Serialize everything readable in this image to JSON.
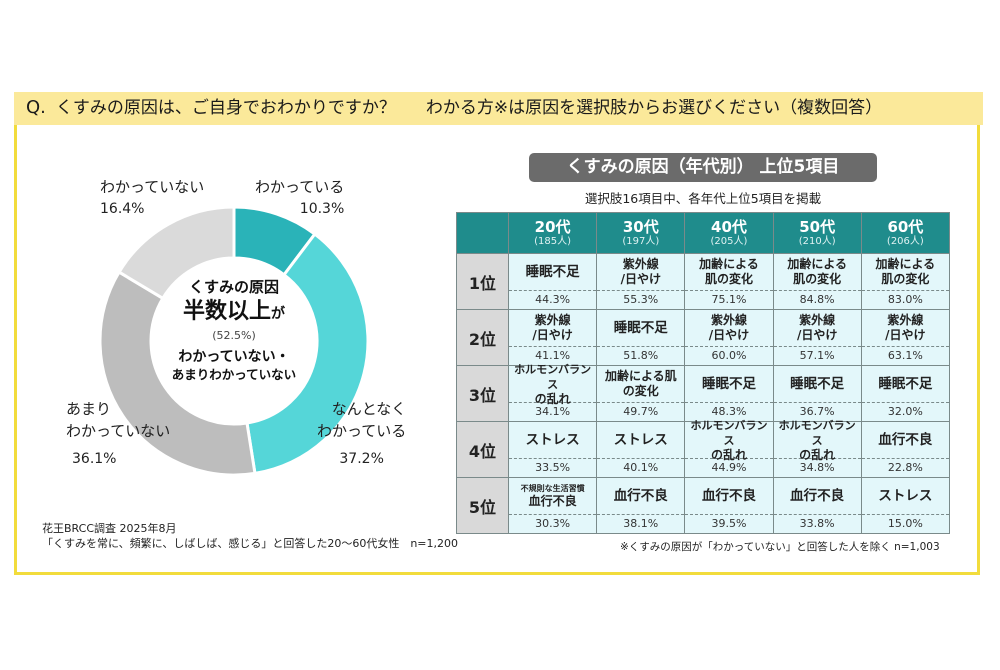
{
  "question": {
    "prefix": "Q.",
    "main": "くすみの原因は、ご自身でおわかりですか？",
    "sub": "わかる方※は原因を選択肢からお選びください（複数回答）"
  },
  "donut": {
    "center": {
      "line1": "くすみの原因",
      "line2": "半数以上",
      "line2_suffix": "が",
      "line3": "(52.5%)",
      "line4": "わかっていない・",
      "line5": "あまりわかっていない"
    },
    "labels": [
      {
        "name": "わかっている",
        "pct": "10.3%"
      },
      {
        "name": "なんとなくわかっている",
        "name_l1": "なんとなく",
        "name_l2": "わかっている",
        "pct": "37.2%"
      },
      {
        "name": "あまりわかっていない",
        "name_l1": "あまり",
        "name_l2": "わかっていない",
        "pct": "36.1%"
      },
      {
        "name": "わかっていない",
        "pct": "16.4%"
      }
    ]
  },
  "chart_data": [
    {
      "type": "pie",
      "title": "くすみの原因は、ご自身でおわかりですか？",
      "categories": [
        "わかっている",
        "なんとなくわかっている",
        "あまりわかっていない",
        "わかっていない"
      ],
      "values": [
        10.3,
        37.2,
        36.1,
        16.4
      ],
      "colors": [
        "#2ab3b8",
        "#55d6d8",
        "#bdbdbd",
        "#dadada"
      ],
      "annotation": "くすみの原因 半数以上が(52.5%) わかっていない・あまりわかっていない",
      "donut": true
    },
    {
      "type": "table",
      "title": "くすみの原因（年代別） 上位5項目",
      "columns": [
        "20代 (185人)",
        "30代 (197人)",
        "40代 (205人)",
        "50代 (210人)",
        "60代 (206人)"
      ],
      "rows": [
        {
          "rank": "1位",
          "items": [
            [
              "睡眠不足",
              44.3
            ],
            [
              "紫外線/日やけ",
              55.3
            ],
            [
              "加齢による肌の変化",
              75.1
            ],
            [
              "加齢による肌の変化",
              84.8
            ],
            [
              "加齢による肌の変化",
              83.0
            ]
          ]
        },
        {
          "rank": "2位",
          "items": [
            [
              "紫外線/日やけ",
              41.1
            ],
            [
              "睡眠不足",
              51.8
            ],
            [
              "紫外線/日やけ",
              60.0
            ],
            [
              "紫外線/日やけ",
              57.1
            ],
            [
              "紫外線/日やけ",
              63.1
            ]
          ]
        },
        {
          "rank": "3位",
          "items": [
            [
              "ホルモンバランスの乱れ",
              34.1
            ],
            [
              "加齢による肌の変化",
              49.7
            ],
            [
              "睡眠不足",
              48.3
            ],
            [
              "睡眠不足",
              36.7
            ],
            [
              "睡眠不足",
              32.0
            ]
          ]
        },
        {
          "rank": "4位",
          "items": [
            [
              "ストレス",
              33.5
            ],
            [
              "ストレス",
              40.1
            ],
            [
              "ホルモンバランスの乱れ",
              44.9
            ],
            [
              "ホルモンバランスの乱れ",
              34.8
            ],
            [
              "血行不良",
              22.8
            ]
          ]
        },
        {
          "rank": "5位",
          "items": [
            [
              "不規則な生活習慣/血行不良",
              30.3
            ],
            [
              "血行不良",
              38.1
            ],
            [
              "血行不良",
              39.5
            ],
            [
              "血行不良",
              33.8
            ],
            [
              "ストレス",
              15.0
            ]
          ]
        }
      ]
    }
  ],
  "table": {
    "title": "くすみの原因（年代別） 上位5項目",
    "subtitle": "選択肢16項目中、各年代上位5項目を掲載",
    "headers": [
      {
        "age": "20代",
        "n": "(185人)"
      },
      {
        "age": "30代",
        "n": "(197人)"
      },
      {
        "age": "40代",
        "n": "(205人)"
      },
      {
        "age": "50代",
        "n": "(210人)"
      },
      {
        "age": "60代",
        "n": "(206人)"
      }
    ],
    "rows": [
      {
        "rank": "1位",
        "cells": [
          {
            "l1": "睡眠不足",
            "l2": "",
            "pct": "44.3%"
          },
          {
            "l1": "紫外線",
            "l2": "/日やけ",
            "pct": "55.3%"
          },
          {
            "l1": "加齢による",
            "l2": "肌の変化",
            "pct": "75.1%"
          },
          {
            "l1": "加齢による",
            "l2": "肌の変化",
            "pct": "84.8%"
          },
          {
            "l1": "加齢による",
            "l2": "肌の変化",
            "pct": "83.0%"
          }
        ]
      },
      {
        "rank": "2位",
        "cells": [
          {
            "l1": "紫外線",
            "l2": "/日やけ",
            "pct": "41.1%"
          },
          {
            "l1": "睡眠不足",
            "l2": "",
            "pct": "51.8%"
          },
          {
            "l1": "紫外線",
            "l2": "/日やけ",
            "pct": "60.0%"
          },
          {
            "l1": "紫外線",
            "l2": "/日やけ",
            "pct": "57.1%"
          },
          {
            "l1": "紫外線",
            "l2": "/日やけ",
            "pct": "63.1%"
          }
        ]
      },
      {
        "rank": "3位",
        "cells": [
          {
            "l1": "ホルモンバランス",
            "l2": "の乱れ",
            "pct": "34.1%"
          },
          {
            "l1": "加齢による肌",
            "l2": "の変化",
            "pct": "49.7%"
          },
          {
            "l1": "睡眠不足",
            "l2": "",
            "pct": "48.3%"
          },
          {
            "l1": "睡眠不足",
            "l2": "",
            "pct": "36.7%"
          },
          {
            "l1": "睡眠不足",
            "l2": "",
            "pct": "32.0%"
          }
        ]
      },
      {
        "rank": "4位",
        "cells": [
          {
            "l1": "ストレス",
            "l2": "",
            "pct": "33.5%"
          },
          {
            "l1": "ストレス",
            "l2": "",
            "pct": "40.1%"
          },
          {
            "l1": "ホルモンバランス",
            "l2": "の乱れ",
            "pct": "44.9%"
          },
          {
            "l1": "ホルモンバランス",
            "l2": "の乱れ",
            "pct": "34.8%"
          },
          {
            "l1": "血行不良",
            "l2": "",
            "pct": "22.8%"
          }
        ]
      },
      {
        "rank": "5位",
        "cells": [
          {
            "l1": "不規則な生活習慣",
            "l2": "血行不良",
            "pct": "30.3%"
          },
          {
            "l1": "血行不良",
            "l2": "",
            "pct": "38.1%"
          },
          {
            "l1": "血行不良",
            "l2": "",
            "pct": "39.5%"
          },
          {
            "l1": "血行不良",
            "l2": "",
            "pct": "33.8%"
          },
          {
            "l1": "ストレス",
            "l2": "",
            "pct": "15.0%"
          }
        ]
      }
    ],
    "note": "※くすみの原因が「わかっていない」と回答した人を除く n=1,003"
  },
  "source": {
    "line1": "花王BRCC調査 2025年8月",
    "line2": "「くすみを常に、頻繁に、しばしば、感じる」と回答した20〜60代女性　n=1,200"
  }
}
